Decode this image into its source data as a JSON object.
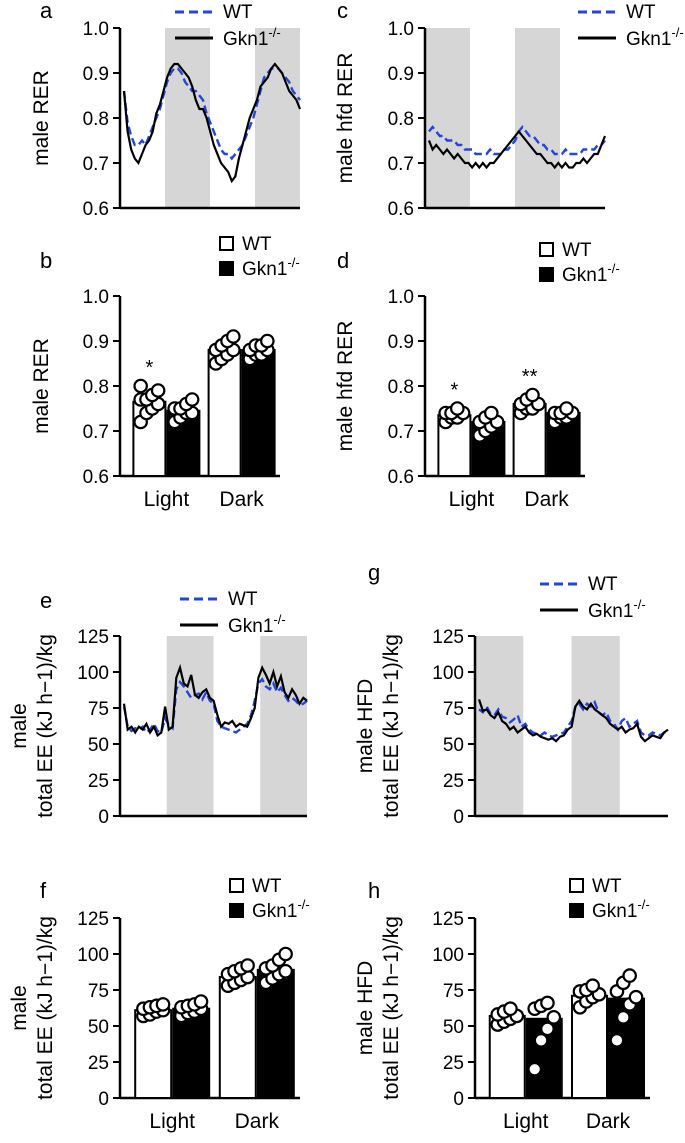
{
  "colors": {
    "wt": "#2346d6",
    "ko": "#000000",
    "dark_phase": "#d6d6d6",
    "bar_wt": "#ffffff",
    "bar_ko": "#000000"
  },
  "chart_data": [
    {
      "id": "a",
      "type": "line",
      "panel_label": "a",
      "ylabel": "male RER",
      "ylim": [
        0.6,
        1.0
      ],
      "yticks": [
        "0.6",
        "0.7",
        "0.8",
        "0.9",
        "1.0"
      ],
      "dark_periods": [
        [
          0.25,
          0.5
        ],
        [
          0.75,
          1.0
        ]
      ],
      "legend": {
        "wt": "WT",
        "ko_base": "Gkn1",
        "ko_sup": "-/-"
      },
      "series": [
        {
          "name": "WT",
          "style": "dashed",
          "values": [
            0.86,
            0.79,
            0.76,
            0.74,
            0.74,
            0.75,
            0.74,
            0.76,
            0.78,
            0.8,
            0.82,
            0.85,
            0.88,
            0.9,
            0.91,
            0.91,
            0.9,
            0.88,
            0.87,
            0.86,
            0.86,
            0.85,
            0.84,
            0.81,
            0.79,
            0.77,
            0.75,
            0.73,
            0.72,
            0.72,
            0.71,
            0.72,
            0.73,
            0.74,
            0.76,
            0.78,
            0.8,
            0.83,
            0.86,
            0.89,
            0.9,
            0.91,
            0.91,
            0.91,
            0.9,
            0.89,
            0.88,
            0.86,
            0.85,
            0.84
          ]
        },
        {
          "name": "Gkn1-/-",
          "style": "solid",
          "values": [
            0.86,
            0.77,
            0.73,
            0.71,
            0.7,
            0.72,
            0.74,
            0.75,
            0.77,
            0.81,
            0.83,
            0.86,
            0.89,
            0.91,
            0.92,
            0.92,
            0.91,
            0.9,
            0.89,
            0.87,
            0.84,
            0.82,
            0.82,
            0.8,
            0.77,
            0.74,
            0.72,
            0.7,
            0.69,
            0.68,
            0.66,
            0.67,
            0.71,
            0.74,
            0.77,
            0.8,
            0.82,
            0.84,
            0.87,
            0.88,
            0.89,
            0.91,
            0.92,
            0.91,
            0.9,
            0.88,
            0.86,
            0.85,
            0.84,
            0.82
          ]
        }
      ]
    },
    {
      "id": "c",
      "type": "line",
      "panel_label": "c",
      "ylabel": "male hfd RER",
      "ylim": [
        0.6,
        1.0
      ],
      "yticks": [
        "0.6",
        "0.7",
        "0.8",
        "0.9",
        "1.0"
      ],
      "dark_periods": [
        [
          0.0,
          0.25
        ],
        [
          0.5,
          0.75
        ]
      ],
      "legend": {
        "wt": "WT",
        "ko_base": "Gkn1",
        "ko_sup": "-/-"
      },
      "series": [
        {
          "name": "WT",
          "style": "dashed",
          "values": [
            0.77,
            0.78,
            0.77,
            0.76,
            0.76,
            0.75,
            0.75,
            0.75,
            0.74,
            0.74,
            0.73,
            0.73,
            0.73,
            0.72,
            0.72,
            0.72,
            0.72,
            0.73,
            0.72,
            0.72,
            0.72,
            0.73,
            0.73,
            0.74,
            0.75,
            0.77,
            0.78,
            0.77,
            0.76,
            0.76,
            0.75,
            0.74,
            0.74,
            0.73,
            0.73,
            0.72,
            0.72,
            0.72,
            0.73,
            0.72,
            0.72,
            0.72,
            0.72,
            0.73,
            0.73,
            0.73,
            0.73,
            0.74,
            0.74,
            0.75
          ]
        },
        {
          "name": "Gkn1-/-",
          "style": "solid",
          "values": [
            0.75,
            0.73,
            0.74,
            0.73,
            0.72,
            0.73,
            0.72,
            0.71,
            0.72,
            0.71,
            0.7,
            0.7,
            0.69,
            0.7,
            0.69,
            0.7,
            0.69,
            0.7,
            0.7,
            0.71,
            0.72,
            0.73,
            0.74,
            0.75,
            0.76,
            0.77,
            0.76,
            0.75,
            0.74,
            0.73,
            0.72,
            0.72,
            0.71,
            0.7,
            0.7,
            0.69,
            0.7,
            0.69,
            0.7,
            0.69,
            0.69,
            0.7,
            0.7,
            0.71,
            0.7,
            0.71,
            0.72,
            0.72,
            0.74,
            0.76
          ]
        }
      ]
    },
    {
      "id": "b",
      "type": "bar",
      "panel_label": "b",
      "ylabel": "male RER",
      "ylim": [
        0.6,
        1.0
      ],
      "yticks": [
        "0.6",
        "0.7",
        "0.8",
        "0.9",
        "1.0"
      ],
      "categories": [
        "Light",
        "Dark"
      ],
      "legend": {
        "wt": "WT",
        "ko_base": "Gkn1",
        "ko_sup": "-/-"
      },
      "series": [
        {
          "name": "WT",
          "values": [
            0.765,
            0.88
          ],
          "points": [
            [
              0.72,
              0.74,
              0.75,
              0.76,
              0.77,
              0.77,
              0.78,
              0.79,
              0.8
            ],
            [
              0.85,
              0.86,
              0.87,
              0.88,
              0.88,
              0.89,
              0.9,
              0.91
            ]
          ]
        },
        {
          "name": "Gkn1-/-",
          "values": [
            0.745,
            0.88
          ],
          "points": [
            [
              0.72,
              0.73,
              0.74,
              0.74,
              0.75,
              0.75,
              0.76,
              0.77
            ],
            [
              0.86,
              0.87,
              0.87,
              0.88,
              0.88,
              0.89,
              0.89,
              0.9
            ]
          ]
        }
      ],
      "annotations": [
        {
          "category": 0,
          "series": 0,
          "text": "*"
        }
      ]
    },
    {
      "id": "d",
      "type": "bar",
      "panel_label": "d",
      "ylabel": "male hfd RER",
      "ylim": [
        0.6,
        1.0
      ],
      "yticks": [
        "0.6",
        "0.7",
        "0.8",
        "0.9",
        "1.0"
      ],
      "categories": [
        "Light",
        "Dark"
      ],
      "legend": {
        "wt": "WT",
        "ko_base": "Gkn1",
        "ko_sup": "-/-"
      },
      "series": [
        {
          "name": "WT",
          "values": [
            0.735,
            0.76
          ],
          "points": [
            [
              0.72,
              0.73,
              0.73,
              0.74,
              0.74,
              0.74,
              0.75
            ],
            [
              0.74,
              0.75,
              0.75,
              0.76,
              0.76,
              0.77,
              0.78
            ]
          ]
        },
        {
          "name": "Gkn1-/-",
          "values": [
            0.72,
            0.74
          ],
          "points": [
            [
              0.69,
              0.7,
              0.71,
              0.72,
              0.72,
              0.73,
              0.74
            ],
            [
              0.72,
              0.73,
              0.73,
              0.74,
              0.74,
              0.74,
              0.75
            ]
          ]
        }
      ],
      "annotations": [
        {
          "category": 0,
          "series": 0,
          "text": "*"
        },
        {
          "category": 1,
          "series": 0,
          "text": "**"
        }
      ]
    },
    {
      "id": "e",
      "type": "line",
      "panel_label": "e",
      "ylabel": [
        "male",
        "total EE (kJ h−1)/kg"
      ],
      "ylim": [
        0,
        125
      ],
      "yticks": [
        "0",
        "25",
        "50",
        "75",
        "100",
        "125"
      ],
      "dark_periods": [
        [
          0.25,
          0.5
        ],
        [
          0.75,
          1.0
        ]
      ],
      "legend": {
        "wt": "WT",
        "ko_base": "Gkn1",
        "ko_sup": "-/-"
      },
      "series": [
        {
          "name": "WT",
          "style": "dashed",
          "values": [
            76,
            62,
            59,
            61,
            60,
            62,
            58,
            60,
            64,
            59,
            58,
            68,
            63,
            61,
            88,
            93,
            90,
            86,
            82,
            84,
            85,
            81,
            86,
            80,
            78,
            66,
            62,
            61,
            60,
            59,
            58,
            60,
            62,
            64,
            70,
            80,
            92,
            95,
            90,
            88,
            92,
            86,
            89,
            84,
            80,
            82,
            80,
            77,
            78,
            80
          ]
        },
        {
          "name": "Gkn1-/-",
          "style": "solid",
          "values": [
            78,
            60,
            62,
            58,
            62,
            60,
            64,
            58,
            62,
            56,
            58,
            76,
            60,
            62,
            96,
            103,
            92,
            90,
            98,
            84,
            82,
            86,
            88,
            82,
            80,
            70,
            62,
            65,
            64,
            66,
            62,
            64,
            63,
            62,
            68,
            75,
            96,
            103,
            98,
            92,
            100,
            90,
            97,
            86,
            82,
            88,
            84,
            78,
            82,
            80
          ]
        }
      ]
    },
    {
      "id": "g",
      "type": "line",
      "panel_label": "g",
      "ylabel": [
        "male HFD",
        "total EE (kJ h−1)/kg"
      ],
      "ylim": [
        0,
        125
      ],
      "yticks": [
        "0",
        "25",
        "50",
        "75",
        "100",
        "125"
      ],
      "dark_periods": [
        [
          0.0,
          0.25
        ],
        [
          0.5,
          0.75
        ]
      ],
      "legend": {
        "wt": "WT",
        "ko_base": "Gkn1",
        "ko_sup": "-/-"
      },
      "series": [
        {
          "name": "WT",
          "style": "dashed",
          "values": [
            74,
            72,
            76,
            71,
            70,
            74,
            69,
            68,
            65,
            67,
            70,
            62,
            64,
            60,
            58,
            57,
            56,
            58,
            56,
            55,
            56,
            57,
            58,
            62,
            66,
            76,
            78,
            74,
            78,
            76,
            79,
            72,
            70,
            72,
            66,
            64,
            60,
            66,
            68,
            62,
            64,
            66,
            58,
            56,
            56,
            58,
            57,
            56,
            58,
            59
          ]
        },
        {
          "name": "Gkn1-/-",
          "style": "solid",
          "values": [
            81,
            73,
            74,
            70,
            68,
            72,
            66,
            64,
            60,
            62,
            58,
            60,
            62,
            58,
            56,
            57,
            55,
            54,
            53,
            54,
            52,
            55,
            56,
            60,
            62,
            76,
            80,
            76,
            74,
            78,
            74,
            72,
            70,
            68,
            64,
            62,
            60,
            62,
            58,
            60,
            61,
            64,
            55,
            52,
            54,
            56,
            55,
            54,
            58,
            60
          ]
        }
      ]
    },
    {
      "id": "f",
      "type": "bar",
      "panel_label": "f",
      "ylabel": [
        "male",
        "total EE (kJ h−1)/kg"
      ],
      "ylim": [
        0,
        125
      ],
      "yticks": [
        "0",
        "25",
        "50",
        "75",
        "100",
        "125"
      ],
      "categories": [
        "Light",
        "Dark"
      ],
      "legend": {
        "wt": "WT",
        "ko_base": "Gkn1",
        "ko_sup": "-/-"
      },
      "series": [
        {
          "name": "WT",
          "values": [
            61,
            84
          ],
          "points": [
            [
              57,
              58,
              60,
              61,
              62,
              63,
              64,
              65
            ],
            [
              78,
              80,
              82,
              84,
              86,
              88,
              90,
              92
            ]
          ]
        },
        {
          "name": "Gkn1-/-",
          "values": [
            62,
            89
          ],
          "points": [
            [
              57,
              59,
              60,
              62,
              63,
              64,
              65,
              67
            ],
            [
              80,
              83,
              86,
              88,
              90,
              92,
              96,
              100
            ]
          ]
        }
      ]
    },
    {
      "id": "h",
      "type": "bar",
      "panel_label": "h",
      "ylabel": [
        "male HFD",
        "total EE (kJ h−1)/kg"
      ],
      "ylim": [
        0,
        125
      ],
      "yticks": [
        "0",
        "25",
        "50",
        "75",
        "100",
        "125"
      ],
      "categories": [
        "Light",
        "Dark"
      ],
      "legend": {
        "wt": "WT",
        "ko_base": "Gkn1",
        "ko_sup": "-/-"
      },
      "series": [
        {
          "name": "WT",
          "values": [
            57,
            71
          ],
          "points": [
            [
              51,
              53,
              55,
              57,
              58,
              60,
              62
            ],
            [
              63,
              67,
              70,
              72,
              74,
              75,
              78
            ]
          ]
        },
        {
          "name": "Gkn1-/-",
          "values": [
            55,
            69
          ],
          "points": [
            [
              20,
              40,
              48,
              56,
              62,
              64,
              66
            ],
            [
              40,
              56,
              65,
              70,
              74,
              80,
              85
            ]
          ]
        }
      ]
    }
  ]
}
